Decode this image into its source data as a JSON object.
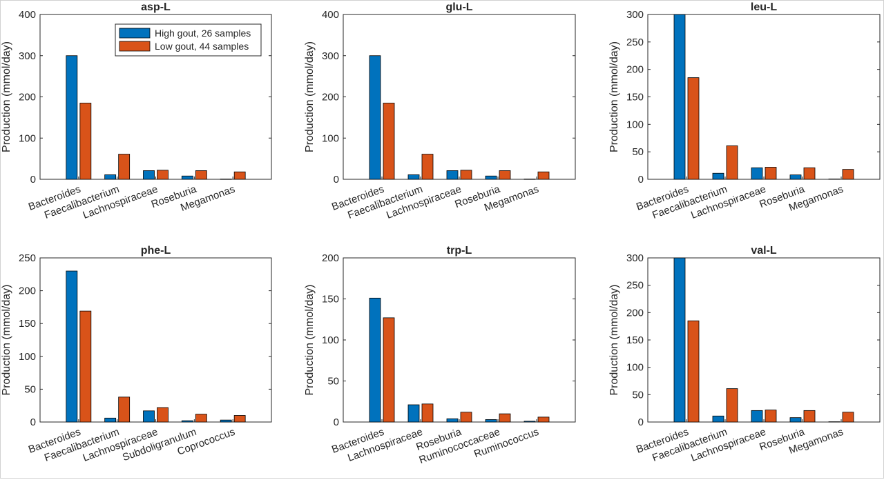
{
  "colors": {
    "high": "#0072BD",
    "low": "#D95319",
    "axis": "#262626",
    "bar_edge": "#000000"
  },
  "legend": {
    "placement": "top-right of first panel",
    "items": [
      "High gout, 26 samples",
      "Low gout, 44 samples"
    ]
  },
  "chart_data": [
    {
      "type": "bar",
      "title": "asp-L",
      "ylabel": "Production (mmol/day)",
      "xlabel": "",
      "ylim": [
        0,
        400
      ],
      "yticks": [
        0,
        100,
        200,
        300,
        400
      ],
      "categories": [
        "Bacteroides",
        "Faecalibacterium",
        "Lachnospiraceae",
        "Roseburia",
        "Megamonas"
      ],
      "series": [
        {
          "name": "High gout, 26 samples",
          "values": [
            300,
            11,
            21,
            8,
            0.5
          ]
        },
        {
          "name": "Low gout, 44 samples",
          "values": [
            185,
            61,
            22,
            21,
            18
          ]
        }
      ]
    },
    {
      "type": "bar",
      "title": "glu-L",
      "ylabel": "Production (mmol/day)",
      "xlabel": "",
      "ylim": [
        0,
        400
      ],
      "yticks": [
        0,
        100,
        200,
        300,
        400
      ],
      "categories": [
        "Bacteroides",
        "Faecalibacterium",
        "Lachnospiraceae",
        "Roseburia",
        "Megamonas"
      ],
      "series": [
        {
          "name": "High gout, 26 samples",
          "values": [
            300,
            11,
            21,
            8,
            0.5
          ]
        },
        {
          "name": "Low gout, 44 samples",
          "values": [
            185,
            61,
            22,
            21,
            18
          ]
        }
      ]
    },
    {
      "type": "bar",
      "title": "leu-L",
      "ylabel": "Production (mmol/day)",
      "xlabel": "",
      "ylim": [
        0,
        300
      ],
      "yticks": [
        0,
        50,
        100,
        150,
        200,
        250,
        300
      ],
      "categories": [
        "Bacteroides",
        "Faecalibacterium",
        "Lachnospiraceae",
        "Roseburia",
        "Megamonas"
      ],
      "series": [
        {
          "name": "High gout, 26 samples",
          "values": [
            300,
            11,
            21,
            8,
            0.5
          ]
        },
        {
          "name": "Low gout, 44 samples",
          "values": [
            185,
            61,
            22,
            21,
            18
          ]
        }
      ]
    },
    {
      "type": "bar",
      "title": "phe-L",
      "ylabel": "Production (mmol/day)",
      "xlabel": "",
      "ylim": [
        0,
        250
      ],
      "yticks": [
        0,
        50,
        100,
        150,
        200,
        250
      ],
      "categories": [
        "Bacteroides",
        "Faecalibacterium",
        "Lachnospiraceae",
        "Subdoligranulum",
        "Coprococcus"
      ],
      "series": [
        {
          "name": "High gout, 26 samples",
          "values": [
            230,
            6,
            17,
            2,
            3
          ]
        },
        {
          "name": "Low gout, 44 samples",
          "values": [
            169,
            38,
            22,
            12,
            10
          ]
        }
      ]
    },
    {
      "type": "bar",
      "title": "trp-L",
      "ylabel": "Production (mmol/day)",
      "xlabel": "",
      "ylim": [
        0,
        200
      ],
      "yticks": [
        0,
        50,
        100,
        150,
        200
      ],
      "categories": [
        "Bacteroides",
        "Lachnospiraceae",
        "Roseburia",
        "Ruminococcaceae",
        "Ruminococcus"
      ],
      "series": [
        {
          "name": "High gout, 26 samples",
          "values": [
            151,
            21,
            4,
            3,
            1
          ]
        },
        {
          "name": "Low gout, 44 samples",
          "values": [
            127,
            22,
            12,
            10,
            6
          ]
        }
      ]
    },
    {
      "type": "bar",
      "title": "val-L",
      "ylabel": "Production (mmol/day)",
      "xlabel": "",
      "ylim": [
        0,
        300
      ],
      "yticks": [
        0,
        50,
        100,
        150,
        200,
        250,
        300
      ],
      "categories": [
        "Bacteroides",
        "Faecalibacterium",
        "Lachnospiraceae",
        "Roseburia",
        "Megamonas"
      ],
      "series": [
        {
          "name": "High gout, 26 samples",
          "values": [
            300,
            11,
            21,
            8,
            0.5
          ]
        },
        {
          "name": "Low gout, 44 samples",
          "values": [
            185,
            61,
            22,
            21,
            18
          ]
        }
      ]
    }
  ]
}
